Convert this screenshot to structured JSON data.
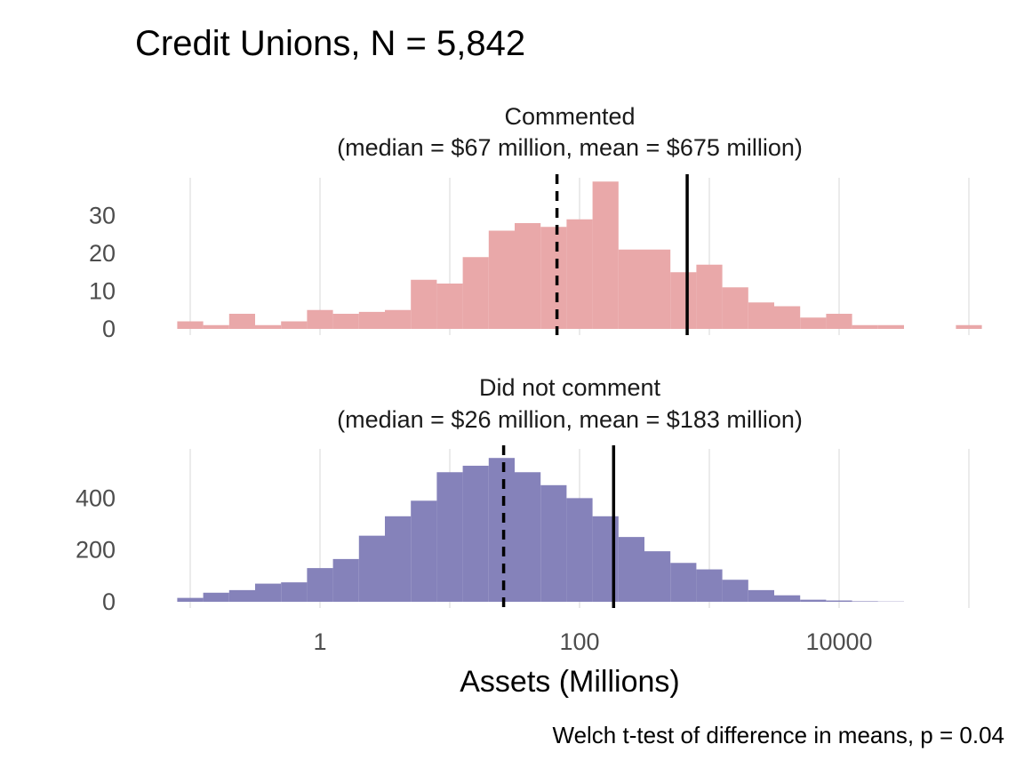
{
  "chart_data": {
    "type": "bar",
    "title": "Credit Unions, N = 5,842",
    "xlabel": "Assets (Millions)",
    "caption": "Welch t-test of difference in means, p = 0.04",
    "x_scale": "log10",
    "xlim": [
      0.08,
      100000
    ],
    "x_ticks": [
      1,
      100,
      10000
    ],
    "x_tick_labels": [
      "1",
      "100",
      "10000"
    ],
    "x_minor_gridlines": [
      0.1,
      10,
      1000,
      100000
    ],
    "bin_log_width": 0.2,
    "colors": {
      "Commented": "#e9a8a9",
      "Did not comment": "#8582ba"
    },
    "panels": [
      {
        "name": "Commented",
        "label_line1": "Commented",
        "label_line2": "(median = $67 million, mean = $675 million)",
        "median": 67,
        "mean": 675,
        "ylim": [
          0,
          40
        ],
        "y_ticks": [
          0,
          10,
          20,
          30
        ],
        "y_tick_labels": [
          "0",
          "10",
          "20",
          "30"
        ],
        "bin_start_log10": -1.1,
        "counts": [
          2,
          1,
          4,
          1,
          2,
          5,
          4,
          4.5,
          5,
          13,
          12,
          19,
          26,
          28,
          27,
          29,
          39,
          21,
          21,
          15,
          17,
          11,
          7,
          6,
          3,
          4,
          1,
          1,
          0,
          0,
          1
        ]
      },
      {
        "name": "Did not comment",
        "label_line1": "Did not comment",
        "label_line2": "(median = $26 million, mean = $183 million)",
        "median": 26,
        "mean": 183,
        "ylim": [
          0,
          590
        ],
        "y_ticks": [
          0,
          200,
          400
        ],
        "y_tick_labels": [
          "0",
          "200",
          "400"
        ],
        "bin_start_log10": -1.1,
        "counts": [
          15,
          35,
          45,
          70,
          75,
          130,
          165,
          255,
          330,
          390,
          500,
          525,
          555,
          500,
          450,
          400,
          330,
          250,
          195,
          150,
          125,
          85,
          45,
          25,
          8,
          5,
          2,
          1
        ]
      }
    ]
  }
}
